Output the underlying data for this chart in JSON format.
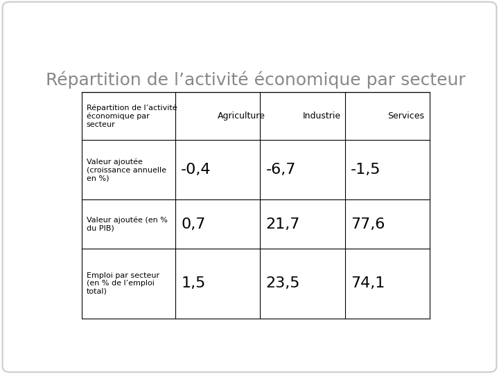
{
  "title": "Répartition de l’activité économique par secteur",
  "col_headers": [
    "Répartition de l’activité\néconomique par\nsecteur",
    "Agriculture",
    "Industrie",
    "Services"
  ],
  "rows": [
    [
      "Valeur ajoutée\n(croissance annuelle\nen %)",
      "-0,4",
      "-6,7",
      "-1,5"
    ],
    [
      "Valeur ajoutée (en %\ndu PIB)",
      "0,7",
      "21,7",
      "77,6"
    ],
    [
      "Emploi par secteur\n(en % de l’emploi\ntotal)",
      "1,5",
      "23,5",
      "74,1"
    ]
  ],
  "background_color": "#ffffff",
  "border_color": "#000000",
  "title_color": "#888888",
  "title_fontsize": 18,
  "header_fontsize": 9,
  "cell_fontsize": 16,
  "small_cell_fontsize": 8
}
